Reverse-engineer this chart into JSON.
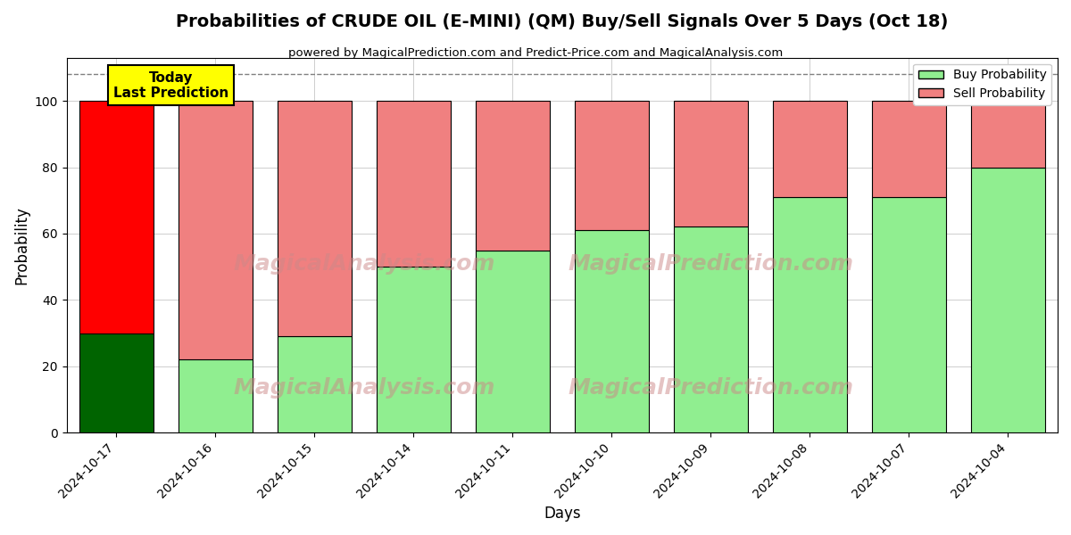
{
  "title": "Probabilities of CRUDE OIL (E-MINI) (QM) Buy/Sell Signals Over 5 Days (Oct 18)",
  "subtitle": "powered by MagicalPrediction.com and Predict-Price.com and MagicalAnalysis.com",
  "xlabel": "Days",
  "ylabel": "Probability",
  "categories": [
    "2024-10-17",
    "2024-10-16",
    "2024-10-15",
    "2024-10-14",
    "2024-10-11",
    "2024-10-10",
    "2024-10-09",
    "2024-10-08",
    "2024-10-07",
    "2024-10-04"
  ],
  "buy_values": [
    30,
    22,
    29,
    50,
    55,
    61,
    62,
    71,
    71,
    80
  ],
  "sell_values": [
    70,
    78,
    71,
    50,
    45,
    39,
    38,
    29,
    29,
    20
  ],
  "today_bar_buy_color": "#006400",
  "today_bar_sell_color": "#FF0000",
  "other_bar_buy_color": "#90EE90",
  "other_bar_sell_color": "#F08080",
  "today_label_bg": "#FFFF00",
  "today_label_text": "Today\nLast Prediction",
  "legend_buy_label": "Buy Probability",
  "legend_sell_label": "Sell Probability",
  "ylim": [
    0,
    113
  ],
  "dashed_line_y": 108,
  "background_color": "#ffffff",
  "grid_color": "#bbbbbb"
}
